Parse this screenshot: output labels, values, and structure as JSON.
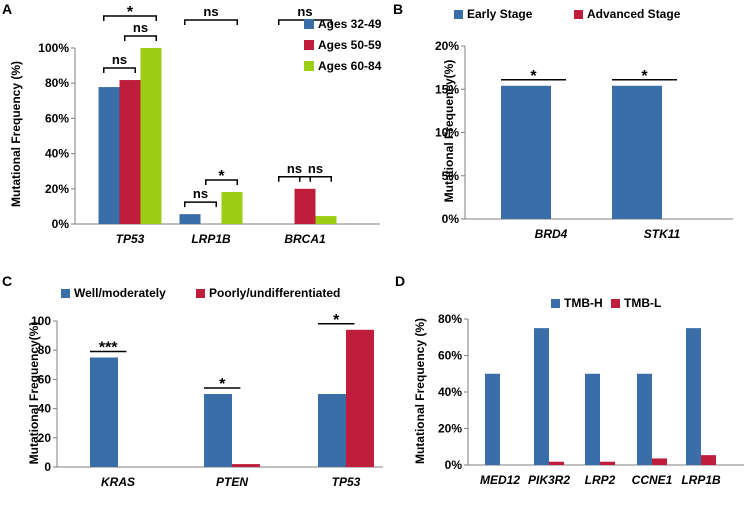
{
  "colors": {
    "blue": "#3a6ea8",
    "red": "#be1e3c",
    "green": "#9ccc14"
  },
  "chart_data": [
    {
      "panel": "A",
      "type": "bar",
      "ylabel": "Mutational Frequency (%)",
      "ylim": [
        0,
        100
      ],
      "yticks": [
        0,
        20,
        40,
        60,
        80,
        100
      ],
      "ytick_suffix": "%",
      "categories": [
        "TP53",
        "LRP1B",
        "BRCA1"
      ],
      "series": [
        {
          "name": "Ages 32-49",
          "color": "blue",
          "values": [
            77.8,
            5.6,
            0
          ]
        },
        {
          "name": "Ages 50-59",
          "color": "red",
          "values": [
            81.8,
            0,
            20
          ]
        },
        {
          "name": "Ages 60-84",
          "color": "green",
          "values": [
            100,
            18.2,
            4.5
          ]
        }
      ],
      "legend": {
        "position": "top-right",
        "layout": "vertical"
      },
      "annotations": [
        {
          "cat": 0,
          "from": 0,
          "to": 1,
          "level": 1,
          "label": "ns"
        },
        {
          "cat": 0,
          "from": 1,
          "to": 2,
          "level": 1,
          "label": "ns"
        },
        {
          "cat": 0,
          "from": 0,
          "to": 2,
          "level": 2,
          "label": "*"
        },
        {
          "cat": 1,
          "from": 0,
          "to": 1,
          "level": 1,
          "label": "ns"
        },
        {
          "cat": 1,
          "from": 1,
          "to": 2,
          "level": 1,
          "label": "*"
        },
        {
          "cat": 1,
          "from": 0,
          "to": 2,
          "level": 2,
          "label": "ns"
        },
        {
          "cat": 2,
          "from": 0,
          "to": 1,
          "level": 1,
          "label": "ns"
        },
        {
          "cat": 2,
          "from": 1,
          "to": 2,
          "level": 1,
          "label": "ns"
        },
        {
          "cat": 2,
          "from": 0,
          "to": 2,
          "level": 2,
          "label": "ns"
        }
      ]
    },
    {
      "panel": "B",
      "type": "bar",
      "ylabel": "Mutational Frequency(%)",
      "ylim": [
        0,
        20
      ],
      "yticks": [
        0,
        5,
        10,
        15,
        20
      ],
      "ytick_suffix": "%",
      "categories": [
        "BRD4",
        "STK11"
      ],
      "series": [
        {
          "name": "Early Stage",
          "color": "blue",
          "values": [
            15.4,
            15.4
          ]
        },
        {
          "name": "Advanced Stage",
          "color": "red",
          "values": [
            0,
            0
          ]
        }
      ],
      "legend": {
        "position": "top",
        "layout": "horizontal"
      },
      "annotations": [
        {
          "cat": 0,
          "from": 0,
          "to": 1,
          "level": 1,
          "label": "*"
        },
        {
          "cat": 1,
          "from": 0,
          "to": 1,
          "level": 1,
          "label": "*"
        }
      ]
    },
    {
      "panel": "C",
      "type": "bar",
      "ylabel": "Mutational Frequency(%)",
      "ylim": [
        0,
        100
      ],
      "yticks": [
        0,
        20,
        40,
        60,
        80,
        100
      ],
      "ytick_suffix": "",
      "categories": [
        "KRAS",
        "PTEN",
        "TP53"
      ],
      "series": [
        {
          "name": "Well/moderately",
          "color": "blue",
          "values": [
            75,
            50,
            50
          ]
        },
        {
          "name": "Poorly/undifferentiated",
          "color": "red",
          "values": [
            0,
            2,
            94
          ]
        }
      ],
      "legend": {
        "position": "top",
        "layout": "horizontal"
      },
      "annotations": [
        {
          "cat": 0,
          "from": 0,
          "to": 1,
          "level": 1,
          "label": "***"
        },
        {
          "cat": 1,
          "from": 0,
          "to": 1,
          "level": 1,
          "label": "*"
        },
        {
          "cat": 2,
          "from": 0,
          "to": 1,
          "level": 1,
          "label": "*"
        }
      ]
    },
    {
      "panel": "D",
      "type": "bar",
      "ylabel": "Mutational Frequency (%)",
      "ylim": [
        0,
        80
      ],
      "yticks": [
        0,
        20,
        40,
        60,
        80
      ],
      "ytick_suffix": "%",
      "categories": [
        "MED12",
        "PIK3R2",
        "LRP2",
        "CCNE1",
        "LRP1B"
      ],
      "series": [
        {
          "name": "TMB-H",
          "color": "blue",
          "values": [
            50,
            75,
            50,
            50,
            75
          ]
        },
        {
          "name": "TMB-L",
          "color": "red",
          "values": [
            0,
            1.8,
            1.8,
            3.6,
            5.4
          ]
        }
      ],
      "legend": {
        "position": "top",
        "layout": "horizontal"
      },
      "annotations": []
    }
  ]
}
